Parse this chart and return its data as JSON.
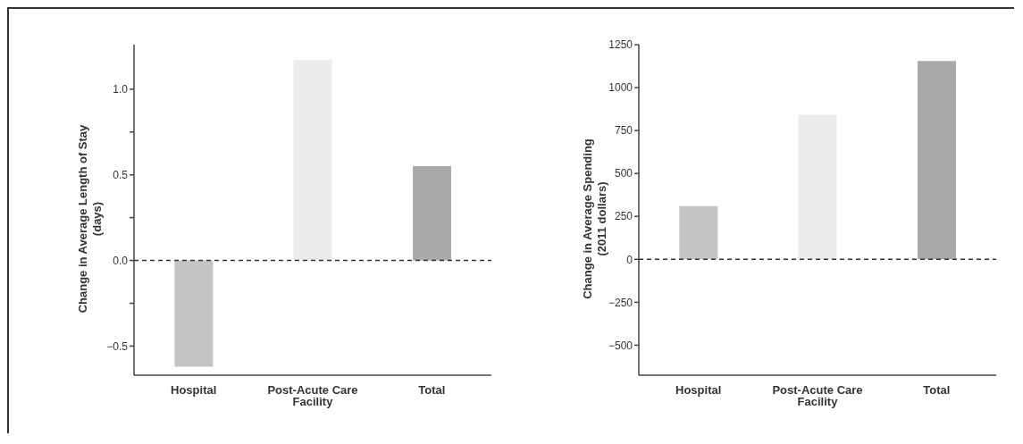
{
  "chart_data": [
    {
      "type": "bar",
      "ylabel": "Change in Average Length of Stay\n(days)",
      "categories": [
        "Hospital",
        "Post-Acute Care Facility",
        "Total"
      ],
      "values": [
        -0.62,
        1.17,
        0.55
      ],
      "colors": [
        "#c4c4c4",
        "#ebebeb",
        "#a9a9a9"
      ],
      "ylim": [
        -0.67,
        1.26
      ],
      "yticks": [
        {
          "value": -0.5,
          "label": "−0.5"
        },
        {
          "value": -0.25,
          "label": null
        },
        {
          "value": 0,
          "label": "0.0"
        },
        {
          "value": 0.25,
          "label": null
        },
        {
          "value": 0.5,
          "label": "0.5"
        },
        {
          "value": 0.75,
          "label": null
        },
        {
          "value": 1,
          "label": "1.0"
        }
      ],
      "ref_lines": [
        {
          "axis": "y",
          "value": 0,
          "line_style": "dashed",
          "color": "#333333"
        }
      ],
      "grid": false,
      "legend": false
    },
    {
      "type": "bar",
      "ylabel": "Change in Average Spending\n(2011 dollars)",
      "categories": [
        "Hospital",
        "Post-Acute Care Facility",
        "Total"
      ],
      "values": [
        310,
        840,
        1155
      ],
      "colors": [
        "#c4c4c4",
        "#ebebeb",
        "#a9a9a9"
      ],
      "ylim": [
        -675,
        1250
      ],
      "yticks": [
        {
          "value": -500,
          "label": "−500"
        },
        {
          "value": -250,
          "label": "−250"
        },
        0,
        250,
        500,
        750,
        1000,
        1250
      ],
      "ref_lines": [
        {
          "axis": "y",
          "value": 0,
          "line_style": "dashed",
          "color": "#333333"
        }
      ],
      "grid": false,
      "legend": false
    }
  ]
}
